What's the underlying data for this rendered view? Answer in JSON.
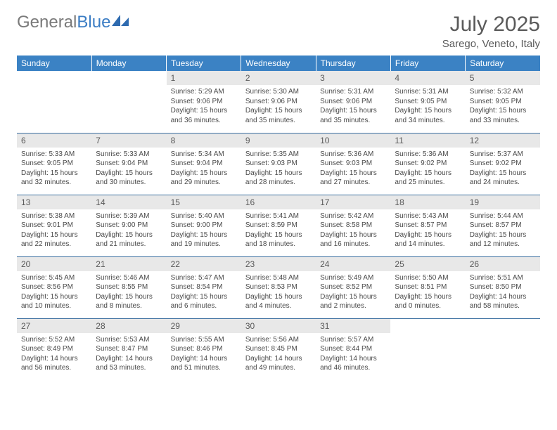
{
  "logo": {
    "text1": "General",
    "text2": "Blue"
  },
  "title": "July 2025",
  "location": "Sarego, Veneto, Italy",
  "colors": {
    "header_bg": "#3b82c4",
    "header_text": "#ffffff",
    "daynum_bg": "#e8e8e8",
    "daynum_text": "#5a5a5a",
    "border": "#3b6fa0",
    "body_text": "#4a4a4a",
    "logo_gray": "#7a7a7a",
    "logo_blue": "#3b7dc4"
  },
  "day_headers": [
    "Sunday",
    "Monday",
    "Tuesday",
    "Wednesday",
    "Thursday",
    "Friday",
    "Saturday"
  ],
  "weeks": [
    [
      null,
      null,
      {
        "num": "1",
        "sunrise": "Sunrise: 5:29 AM",
        "sunset": "Sunset: 9:06 PM",
        "daylight1": "Daylight: 15 hours",
        "daylight2": "and 36 minutes."
      },
      {
        "num": "2",
        "sunrise": "Sunrise: 5:30 AM",
        "sunset": "Sunset: 9:06 PM",
        "daylight1": "Daylight: 15 hours",
        "daylight2": "and 35 minutes."
      },
      {
        "num": "3",
        "sunrise": "Sunrise: 5:31 AM",
        "sunset": "Sunset: 9:06 PM",
        "daylight1": "Daylight: 15 hours",
        "daylight2": "and 35 minutes."
      },
      {
        "num": "4",
        "sunrise": "Sunrise: 5:31 AM",
        "sunset": "Sunset: 9:05 PM",
        "daylight1": "Daylight: 15 hours",
        "daylight2": "and 34 minutes."
      },
      {
        "num": "5",
        "sunrise": "Sunrise: 5:32 AM",
        "sunset": "Sunset: 9:05 PM",
        "daylight1": "Daylight: 15 hours",
        "daylight2": "and 33 minutes."
      }
    ],
    [
      {
        "num": "6",
        "sunrise": "Sunrise: 5:33 AM",
        "sunset": "Sunset: 9:05 PM",
        "daylight1": "Daylight: 15 hours",
        "daylight2": "and 32 minutes."
      },
      {
        "num": "7",
        "sunrise": "Sunrise: 5:33 AM",
        "sunset": "Sunset: 9:04 PM",
        "daylight1": "Daylight: 15 hours",
        "daylight2": "and 30 minutes."
      },
      {
        "num": "8",
        "sunrise": "Sunrise: 5:34 AM",
        "sunset": "Sunset: 9:04 PM",
        "daylight1": "Daylight: 15 hours",
        "daylight2": "and 29 minutes."
      },
      {
        "num": "9",
        "sunrise": "Sunrise: 5:35 AM",
        "sunset": "Sunset: 9:03 PM",
        "daylight1": "Daylight: 15 hours",
        "daylight2": "and 28 minutes."
      },
      {
        "num": "10",
        "sunrise": "Sunrise: 5:36 AM",
        "sunset": "Sunset: 9:03 PM",
        "daylight1": "Daylight: 15 hours",
        "daylight2": "and 27 minutes."
      },
      {
        "num": "11",
        "sunrise": "Sunrise: 5:36 AM",
        "sunset": "Sunset: 9:02 PM",
        "daylight1": "Daylight: 15 hours",
        "daylight2": "and 25 minutes."
      },
      {
        "num": "12",
        "sunrise": "Sunrise: 5:37 AM",
        "sunset": "Sunset: 9:02 PM",
        "daylight1": "Daylight: 15 hours",
        "daylight2": "and 24 minutes."
      }
    ],
    [
      {
        "num": "13",
        "sunrise": "Sunrise: 5:38 AM",
        "sunset": "Sunset: 9:01 PM",
        "daylight1": "Daylight: 15 hours",
        "daylight2": "and 22 minutes."
      },
      {
        "num": "14",
        "sunrise": "Sunrise: 5:39 AM",
        "sunset": "Sunset: 9:00 PM",
        "daylight1": "Daylight: 15 hours",
        "daylight2": "and 21 minutes."
      },
      {
        "num": "15",
        "sunrise": "Sunrise: 5:40 AM",
        "sunset": "Sunset: 9:00 PM",
        "daylight1": "Daylight: 15 hours",
        "daylight2": "and 19 minutes."
      },
      {
        "num": "16",
        "sunrise": "Sunrise: 5:41 AM",
        "sunset": "Sunset: 8:59 PM",
        "daylight1": "Daylight: 15 hours",
        "daylight2": "and 18 minutes."
      },
      {
        "num": "17",
        "sunrise": "Sunrise: 5:42 AM",
        "sunset": "Sunset: 8:58 PM",
        "daylight1": "Daylight: 15 hours",
        "daylight2": "and 16 minutes."
      },
      {
        "num": "18",
        "sunrise": "Sunrise: 5:43 AM",
        "sunset": "Sunset: 8:57 PM",
        "daylight1": "Daylight: 15 hours",
        "daylight2": "and 14 minutes."
      },
      {
        "num": "19",
        "sunrise": "Sunrise: 5:44 AM",
        "sunset": "Sunset: 8:57 PM",
        "daylight1": "Daylight: 15 hours",
        "daylight2": "and 12 minutes."
      }
    ],
    [
      {
        "num": "20",
        "sunrise": "Sunrise: 5:45 AM",
        "sunset": "Sunset: 8:56 PM",
        "daylight1": "Daylight: 15 hours",
        "daylight2": "and 10 minutes."
      },
      {
        "num": "21",
        "sunrise": "Sunrise: 5:46 AM",
        "sunset": "Sunset: 8:55 PM",
        "daylight1": "Daylight: 15 hours",
        "daylight2": "and 8 minutes."
      },
      {
        "num": "22",
        "sunrise": "Sunrise: 5:47 AM",
        "sunset": "Sunset: 8:54 PM",
        "daylight1": "Daylight: 15 hours",
        "daylight2": "and 6 minutes."
      },
      {
        "num": "23",
        "sunrise": "Sunrise: 5:48 AM",
        "sunset": "Sunset: 8:53 PM",
        "daylight1": "Daylight: 15 hours",
        "daylight2": "and 4 minutes."
      },
      {
        "num": "24",
        "sunrise": "Sunrise: 5:49 AM",
        "sunset": "Sunset: 8:52 PM",
        "daylight1": "Daylight: 15 hours",
        "daylight2": "and 2 minutes."
      },
      {
        "num": "25",
        "sunrise": "Sunrise: 5:50 AM",
        "sunset": "Sunset: 8:51 PM",
        "daylight1": "Daylight: 15 hours",
        "daylight2": "and 0 minutes."
      },
      {
        "num": "26",
        "sunrise": "Sunrise: 5:51 AM",
        "sunset": "Sunset: 8:50 PM",
        "daylight1": "Daylight: 14 hours",
        "daylight2": "and 58 minutes."
      }
    ],
    [
      {
        "num": "27",
        "sunrise": "Sunrise: 5:52 AM",
        "sunset": "Sunset: 8:49 PM",
        "daylight1": "Daylight: 14 hours",
        "daylight2": "and 56 minutes."
      },
      {
        "num": "28",
        "sunrise": "Sunrise: 5:53 AM",
        "sunset": "Sunset: 8:47 PM",
        "daylight1": "Daylight: 14 hours",
        "daylight2": "and 53 minutes."
      },
      {
        "num": "29",
        "sunrise": "Sunrise: 5:55 AM",
        "sunset": "Sunset: 8:46 PM",
        "daylight1": "Daylight: 14 hours",
        "daylight2": "and 51 minutes."
      },
      {
        "num": "30",
        "sunrise": "Sunrise: 5:56 AM",
        "sunset": "Sunset: 8:45 PM",
        "daylight1": "Daylight: 14 hours",
        "daylight2": "and 49 minutes."
      },
      {
        "num": "31",
        "sunrise": "Sunrise: 5:57 AM",
        "sunset": "Sunset: 8:44 PM",
        "daylight1": "Daylight: 14 hours",
        "daylight2": "and 46 minutes."
      },
      null,
      null
    ]
  ]
}
